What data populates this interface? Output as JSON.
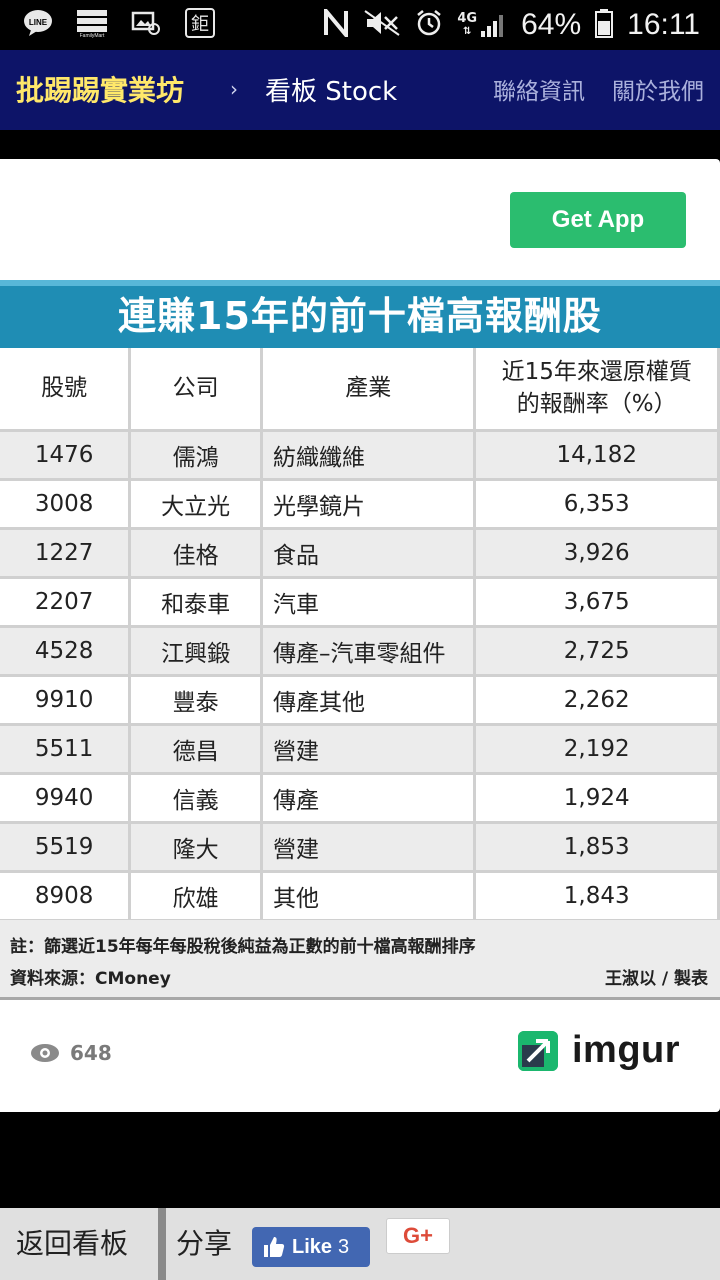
{
  "status_bar": {
    "network": "4G",
    "battery": "64%",
    "time": "16:11",
    "left_icons": [
      "line-icon",
      "familymart-icon",
      "image-mail-icon",
      "app-icon"
    ],
    "app_glyph": "鉅",
    "right_icons": [
      "nfc-icon",
      "mute-icon",
      "alarm-icon",
      "signal-icon",
      "battery-icon"
    ]
  },
  "header": {
    "brand": "批踢踢實業坊",
    "separator": "›",
    "board": "看板 Stock",
    "links": [
      "聯絡資訊",
      "關於我們"
    ]
  },
  "card": {
    "get_app_label": "Get App",
    "views": "648",
    "imgur_label": "imgur",
    "infographic": {
      "title": "連賺15年的前十檔高報酬股",
      "columns": [
        "股號",
        "公司",
        "產業",
        "近15年來還原權質\n的報酬率（%）"
      ],
      "rows": [
        [
          "1476",
          "儒鴻",
          "紡織纖維",
          "14,182"
        ],
        [
          "3008",
          "大立光",
          "光學鏡片",
          "6,353"
        ],
        [
          "1227",
          "佳格",
          "食品",
          "3,926"
        ],
        [
          "2207",
          "和泰車",
          "汽車",
          "3,675"
        ],
        [
          "4528",
          "江興鍛",
          "傳產–汽車零組件",
          "2,725"
        ],
        [
          "9910",
          "豐泰",
          "傳產其他",
          "2,262"
        ],
        [
          "5511",
          "德昌",
          "營建",
          "2,192"
        ],
        [
          "9940",
          "信義",
          "傳產",
          "1,924"
        ],
        [
          "5519",
          "隆大",
          "營建",
          "1,853"
        ],
        [
          "8908",
          "欣雄",
          "其他",
          "1,843"
        ]
      ],
      "note": "註：篩選近15年每年每股稅後純益為正數的前十檔高報酬排序",
      "source": "資料來源：CMoney",
      "credit": "王淑以 / 製表"
    }
  },
  "bottom_bar": {
    "back_label": "返回看板",
    "share_label": "分享",
    "fb_like_label": "Like",
    "fb_like_count": "3",
    "gplus_label": "G+"
  }
}
